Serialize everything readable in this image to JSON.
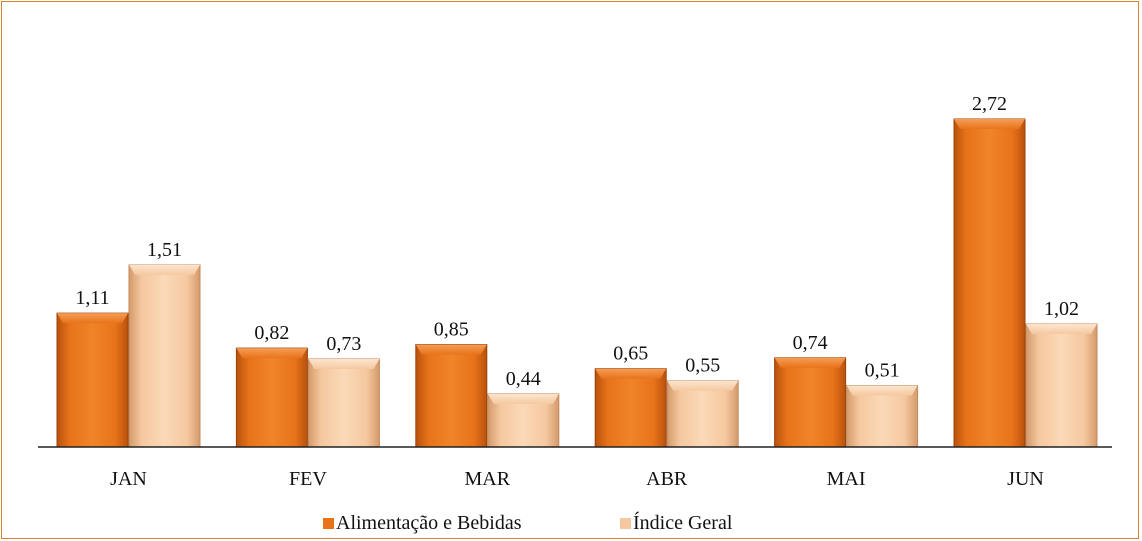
{
  "chart_data": {
    "type": "bar",
    "categories": [
      "JAN",
      "FEV",
      "MAR",
      "ABR",
      "MAI",
      "JUN"
    ],
    "series": [
      {
        "name": "Alimentação e Bebidas",
        "values": [
          1.11,
          0.82,
          0.85,
          0.65,
          0.74,
          2.72
        ],
        "labels": [
          "1,11",
          "0,82",
          "0,85",
          "0,65",
          "0,74",
          "2,72"
        ],
        "color": "#e8731a"
      },
      {
        "name": "Índice Geral",
        "values": [
          1.51,
          0.73,
          0.44,
          0.55,
          0.51,
          1.02
        ],
        "labels": [
          "1,51",
          "0,73",
          "0,44",
          "0,55",
          "0,51",
          "1,02"
        ],
        "color": "#f5c8a0"
      }
    ],
    "title": "",
    "xlabel": "",
    "ylabel": "",
    "ylim": [
      0,
      2.72
    ],
    "grid": false,
    "legend_position": "bottom"
  }
}
